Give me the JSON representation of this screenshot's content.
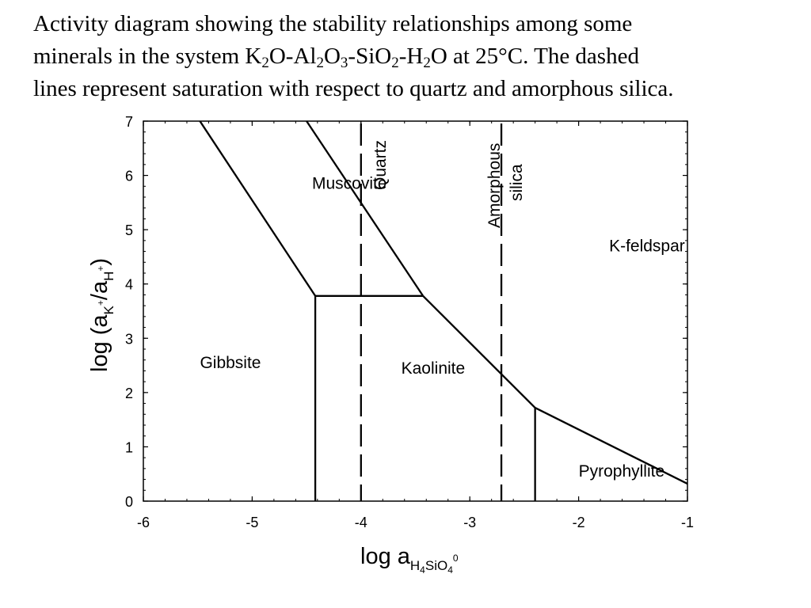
{
  "caption": {
    "line1": "Activity diagram showing the stability relationships among some",
    "line2_before": "minerals in the system K",
    "sub_k2": "2",
    "o_al": "O-Al",
    "sub_al2": "2",
    "o": "O",
    "sub_o3": "3",
    "sio": "-SiO",
    "sub_sio2": "2",
    "h": "-H",
    "sub_h2": "2",
    "line2_after": "O at 25°C. The dashed",
    "line3": "lines represent saturation with respect to quartz and amorphous silica."
  },
  "chart_data": {
    "type": "line",
    "title": "",
    "xlabel": {
      "main": "log a",
      "sub": "H",
      "sub_4": "4",
      "sub_rest": "SiO",
      "sub_4b": "4",
      "sup": "0"
    },
    "ylabel": {
      "main": "log (a",
      "sub_k": "K",
      "sup_plus1": "+",
      "slash": "/a",
      "sub_h": "H",
      "sup_plus2": "+",
      "close": ")"
    },
    "xlim": [
      -6,
      -1
    ],
    "ylim": [
      0,
      7
    ],
    "xticks": [
      -6,
      -5,
      -4,
      -3,
      -2,
      -1
    ],
    "yticks": [
      0,
      1,
      2,
      3,
      4,
      5,
      6,
      7
    ],
    "xtick_labels": [
      "-6",
      "-5",
      "-4",
      "-3",
      "-2",
      "-1"
    ],
    "ytick_labels": [
      "0",
      "1",
      "2",
      "3",
      "4",
      "5",
      "6",
      "7"
    ],
    "boundaries": [
      {
        "name": "gibbsite-muscovite",
        "points": [
          [
            -5.48,
            7.0
          ],
          [
            -4.42,
            3.78
          ]
        ]
      },
      {
        "name": "muscovite-kaolinite",
        "points": [
          [
            -4.42,
            3.78
          ],
          [
            -3.43,
            3.78
          ]
        ]
      },
      {
        "name": "gibbsite-kaolinite",
        "points": [
          [
            -4.42,
            3.78
          ],
          [
            -4.42,
            0.0
          ]
        ]
      },
      {
        "name": "muscovite-kfeldspar",
        "points": [
          [
            -4.5,
            7.0
          ],
          [
            -3.43,
            3.78
          ]
        ]
      },
      {
        "name": "kaolinite-kfeldspar",
        "points": [
          [
            -3.43,
            3.78
          ],
          [
            -2.4,
            1.72
          ]
        ]
      },
      {
        "name": "pyrophyllite-kfeldspar",
        "points": [
          [
            -2.4,
            1.72
          ],
          [
            -1.0,
            0.32
          ]
        ]
      },
      {
        "name": "kaolinite-pyrophyllite",
        "points": [
          [
            -2.4,
            1.72
          ],
          [
            -2.4,
            0.0
          ]
        ]
      }
    ],
    "saturation_lines": [
      {
        "name": "Quartz",
        "x": -4.0
      },
      {
        "name": "Amorphous silica",
        "x": -2.71
      }
    ],
    "field_labels": [
      {
        "text": "Muscovite",
        "x": -4.45,
        "y": 5.75
      },
      {
        "text": "Gibbsite",
        "x": -5.48,
        "y": 2.45
      },
      {
        "text": "Kaolinite",
        "x": -3.63,
        "y": 2.35
      },
      {
        "text": "K-feldspar",
        "x": -1.72,
        "y": 4.6
      },
      {
        "text": "Pyrophyllite",
        "x": -2.0,
        "y": 0.45
      }
    ],
    "line_labels": {
      "quartz": "Quartz",
      "amorphous_line1": "Amorphous",
      "amorphous_line2": "silica"
    }
  }
}
